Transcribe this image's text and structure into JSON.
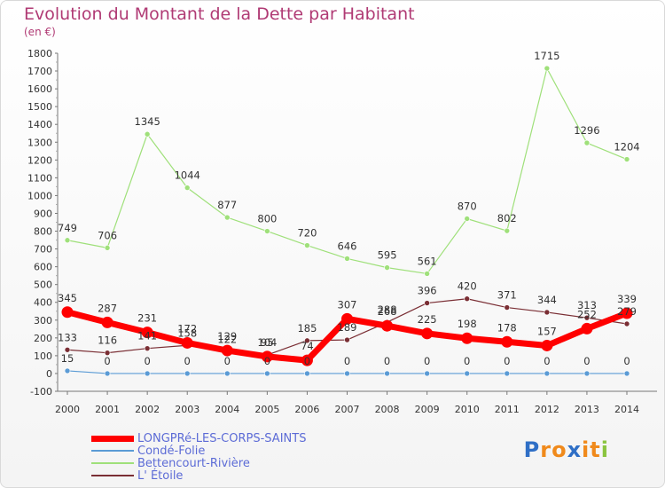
{
  "title": "Evolution du Montant de la Dette par Habitant",
  "subtitle": "(en €)",
  "logo": {
    "text": "Proxiti",
    "letters": [
      "P",
      "r",
      "o",
      "x",
      "i",
      "t",
      "i"
    ],
    "colors": [
      "#2f6fc6",
      "#f08a1c",
      "#f08a1c",
      "#2f6fc6",
      "#f08a1c",
      "#f08a1c",
      "#8ac43f"
    ]
  },
  "chart_data": {
    "type": "line",
    "x": [
      "2000",
      "2001",
      "2002",
      "2003",
      "2004",
      "2005",
      "2006",
      "2007",
      "2008",
      "2009",
      "2010",
      "2011",
      "2012",
      "2013",
      "2014"
    ],
    "ylim": [
      -100,
      1800
    ],
    "yticks": [
      -100,
      0,
      100,
      200,
      300,
      400,
      500,
      600,
      700,
      800,
      900,
      1000,
      1100,
      1200,
      1300,
      1400,
      1500,
      1600,
      1700,
      1800
    ],
    "grid": false,
    "legend_position": "bottom-left",
    "series": [
      {
        "name": "LONGPRé-LES-CORPS-SAINTS",
        "color": "#ff0000",
        "width": 7,
        "values": [
          345,
          287,
          231,
          172,
          129,
          95,
          74,
          307,
          268,
          225,
          198,
          178,
          157,
          252,
          339
        ]
      },
      {
        "name": "Condé-Folie",
        "color": "#5b9bd5",
        "width": 1.2,
        "values": [
          15,
          0,
          0,
          0,
          0,
          0,
          0,
          0,
          0,
          0,
          0,
          0,
          0,
          0,
          0
        ]
      },
      {
        "name": "Bettencourt-Rivière",
        "color": "#9fe07a",
        "width": 1.2,
        "values": [
          749,
          706,
          1345,
          1044,
          877,
          800,
          720,
          646,
          595,
          561,
          870,
          802,
          1715,
          1296,
          1204
        ]
      },
      {
        "name": "L' Étoile",
        "color": "#7a2e34",
        "width": 1.2,
        "values": [
          133,
          116,
          141,
          158,
          122,
          104,
          185,
          189,
          288,
          396,
          420,
          371,
          344,
          313,
          279
        ]
      }
    ]
  }
}
